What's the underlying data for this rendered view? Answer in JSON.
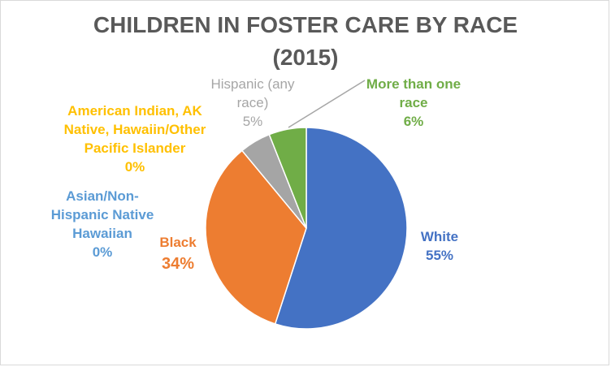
{
  "chart_data": {
    "type": "pie",
    "title_lines": [
      "CHILDREN IN FOSTER CARE BY RACE",
      "(2015)"
    ],
    "start_angle_deg": 0,
    "direction": "clockwise",
    "slices": [
      {
        "name_lines": [
          "White"
        ],
        "value": 55,
        "value_label": "55%",
        "color": "#4472c4",
        "bold": true
      },
      {
        "name_lines": [
          "Black"
        ],
        "value": 34,
        "value_label": "34%",
        "color": "#ed7d31",
        "bold": true
      },
      {
        "name_lines": [
          "Asian/Non-",
          "Hispanic Native",
          "Hawaiian"
        ],
        "value": 0,
        "value_label": "0%",
        "color": "#5b9bd5",
        "bold": true
      },
      {
        "name_lines": [
          "American Indian, AK",
          "Native, Hawaiin/Other",
          "Pacific Islander"
        ],
        "value": 0,
        "value_label": "0%",
        "color": "#ffc000",
        "bold": true
      },
      {
        "name_lines": [
          "Hispanic (any",
          "race)"
        ],
        "value": 5,
        "value_label": "5%",
        "color": "#a5a5a5",
        "bold": false
      },
      {
        "name_lines": [
          "More than one",
          "race"
        ],
        "value": 6,
        "value_label": "6%",
        "color": "#70ad47",
        "bold": true
      }
    ],
    "legend": "none"
  }
}
